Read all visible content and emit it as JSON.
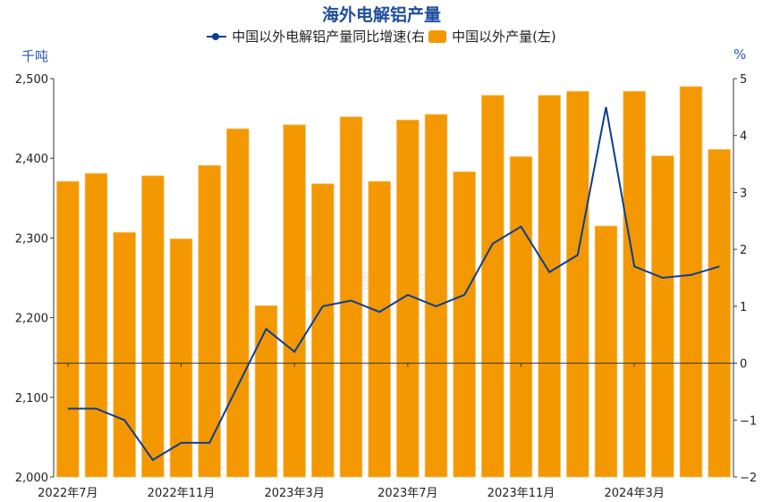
{
  "title": "海外电解铝产量",
  "legend": {
    "line_label": "中国以外电解铝产量同比增速(右",
    "bar_label": "中国以外产量(左)"
  },
  "axes": {
    "left_unit": "千吨",
    "right_unit": "%",
    "left_ticks": [
      "2,500",
      "2,400",
      "2,300",
      "2,200",
      "2,100",
      "2,000"
    ],
    "right_ticks": [
      "5",
      "4",
      "3",
      "2",
      "1",
      "0",
      "−1",
      "−2"
    ]
  },
  "x_labels": [
    "2022年7月",
    "2022年11月",
    "2023年3月",
    "2023年7月",
    "2023年11月",
    "2024年3月"
  ],
  "colors": {
    "bar": "#f39800",
    "line": "#0b3d91",
    "title": "#1f4e9c",
    "unit": "#2b55b8"
  },
  "chart_data": {
    "type": "bar+line",
    "title": "海外电解铝产量",
    "categories": [
      "2022-07",
      "2022-08",
      "2022-09",
      "2022-10",
      "2022-11",
      "2022-12",
      "2023-01",
      "2023-02",
      "2023-03",
      "2023-04",
      "2023-05",
      "2023-06",
      "2023-07",
      "2023-08",
      "2023-09",
      "2023-10",
      "2023-11",
      "2023-12",
      "2024-01",
      "2024-02",
      "2024-03",
      "2024-04",
      "2024-05",
      "2024-06"
    ],
    "tick_labels": [
      "2022年7月",
      "2022年11月",
      "2023年3月",
      "2023年7月",
      "2023年11月",
      "2024年3月"
    ],
    "series": [
      {
        "name": "中国以外产量(左)",
        "type": "bar",
        "axis": "left",
        "unit": "千吨",
        "values": [
          2371,
          2381,
          2307,
          2378,
          2299,
          2391,
          2437,
          2215,
          2442,
          2368,
          2452,
          2371,
          2448,
          2455,
          2383,
          2479,
          2402,
          2479,
          2484,
          2315,
          2484,
          2403,
          2490,
          2411
        ]
      },
      {
        "name": "中国以外电解铝产量同比增速(右)",
        "type": "line",
        "axis": "right",
        "unit": "%",
        "values": [
          -0.8,
          -0.8,
          -1.0,
          -1.7,
          -1.4,
          -1.4,
          -0.4,
          0.6,
          0.2,
          1.0,
          1.1,
          0.9,
          1.2,
          1.0,
          1.2,
          2.1,
          2.4,
          1.6,
          1.9,
          4.5,
          1.7,
          1.5,
          1.55,
          1.7
        ]
      }
    ],
    "ylabel_left": "千吨",
    "ylim_left": [
      2000,
      2500
    ],
    "ylabel_right": "%",
    "ylim_right": [
      -2,
      5
    ],
    "grid": false,
    "legend_position": "top"
  }
}
